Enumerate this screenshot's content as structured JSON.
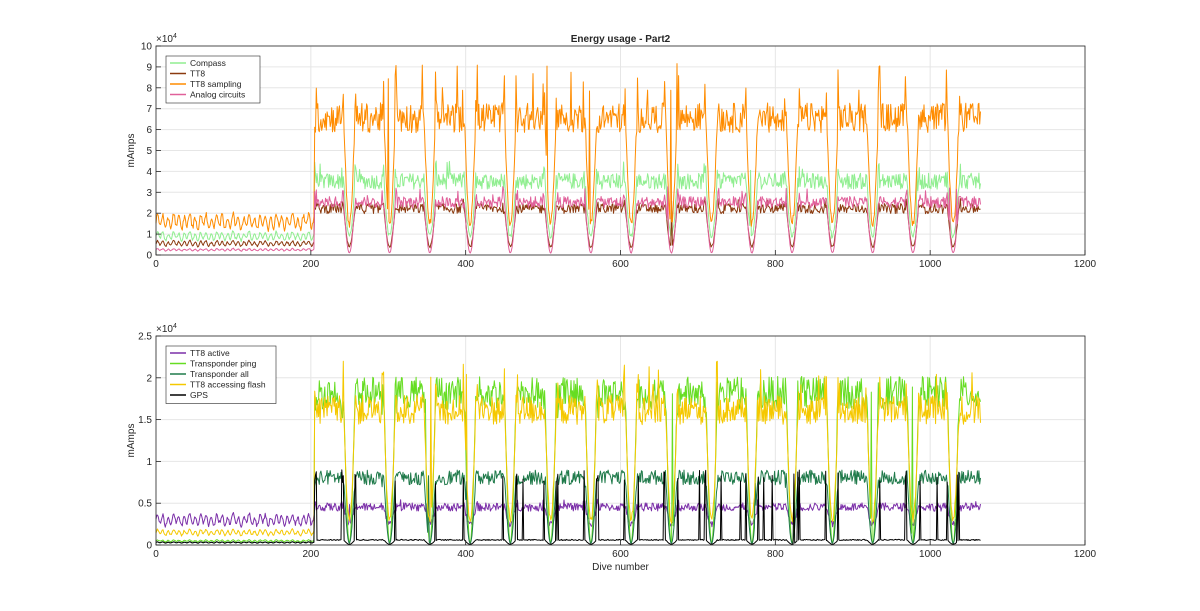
{
  "chart_data": [
    {
      "type": "line",
      "title": "Energy usage - Part2",
      "xlabel": "",
      "ylabel": "mAmps",
      "exponent_label": "×10",
      "exponent_power": "4",
      "xlim": [
        0,
        1200
      ],
      "ylim": [
        0,
        100000
      ],
      "xticks": [
        0,
        200,
        400,
        600,
        800,
        1000,
        1200
      ],
      "yticks": [
        0,
        10000,
        20000,
        30000,
        40000,
        50000,
        60000,
        70000,
        80000,
        90000,
        100000
      ],
      "ytick_labels": [
        "0",
        "1",
        "2",
        "3",
        "4",
        "5",
        "6",
        "7",
        "8",
        "9",
        "10"
      ],
      "grid": true,
      "legend_position": "top-left",
      "x_max_data": 1065,
      "active_dive_period": 52,
      "series": [
        {
          "name": "Compass",
          "color": "#90ee90",
          "baseline": 9000,
          "active_high": 35000,
          "active_low": 9000,
          "spike_max": 45000
        },
        {
          "name": "TT8",
          "color": "#8b3a0f",
          "baseline": 5500,
          "active_high": 22000,
          "active_low": 4000,
          "spike_max": 27000
        },
        {
          "name": "TT8 sampling",
          "color": "#ff8c00",
          "baseline": 16000,
          "active_high": 65000,
          "active_low": 15000,
          "spike_max": 92000
        },
        {
          "name": "Analog circuits",
          "color": "#e0609a",
          "baseline": 2500,
          "active_high": 25000,
          "active_low": 1000,
          "spike_max": 33000
        }
      ]
    },
    {
      "type": "line",
      "title": "",
      "xlabel": "Dive number",
      "ylabel": "mAmps",
      "exponent_label": "×10",
      "exponent_power": "4",
      "xlim": [
        0,
        1200
      ],
      "ylim": [
        0,
        25000
      ],
      "xticks": [
        0,
        200,
        400,
        600,
        800,
        1000,
        1200
      ],
      "yticks": [
        0,
        5000,
        10000,
        15000,
        20000,
        25000
      ],
      "ytick_labels": [
        "0",
        "0.5",
        "1",
        "1.5",
        "2",
        "2.5"
      ],
      "grid": true,
      "legend_position": "top-left",
      "x_max_data": 1065,
      "active_dive_period": 52,
      "series": [
        {
          "name": "TT8 active",
          "color": "#7b2fa8",
          "baseline": 3000,
          "active_high": 4500,
          "active_low": 2500,
          "spike_max": 5500
        },
        {
          "name": "Transponder ping",
          "color": "#66dd22",
          "baseline": 500,
          "active_high": 18000,
          "active_low": 200,
          "spike_max": 19000
        },
        {
          "name": "Transponder all",
          "color": "#1f7a4a",
          "baseline": 300,
          "active_high": 8000,
          "active_low": 200,
          "spike_max": 8500
        },
        {
          "name": "TT8 accessing flash",
          "color": "#f5c800",
          "baseline": 1500,
          "active_high": 16000,
          "active_low": 3000,
          "spike_max": 22000
        },
        {
          "name": "GPS",
          "color": "#000000",
          "baseline": 300,
          "active_high": 600,
          "active_low": 100,
          "spike_max": 9000
        }
      ]
    }
  ]
}
